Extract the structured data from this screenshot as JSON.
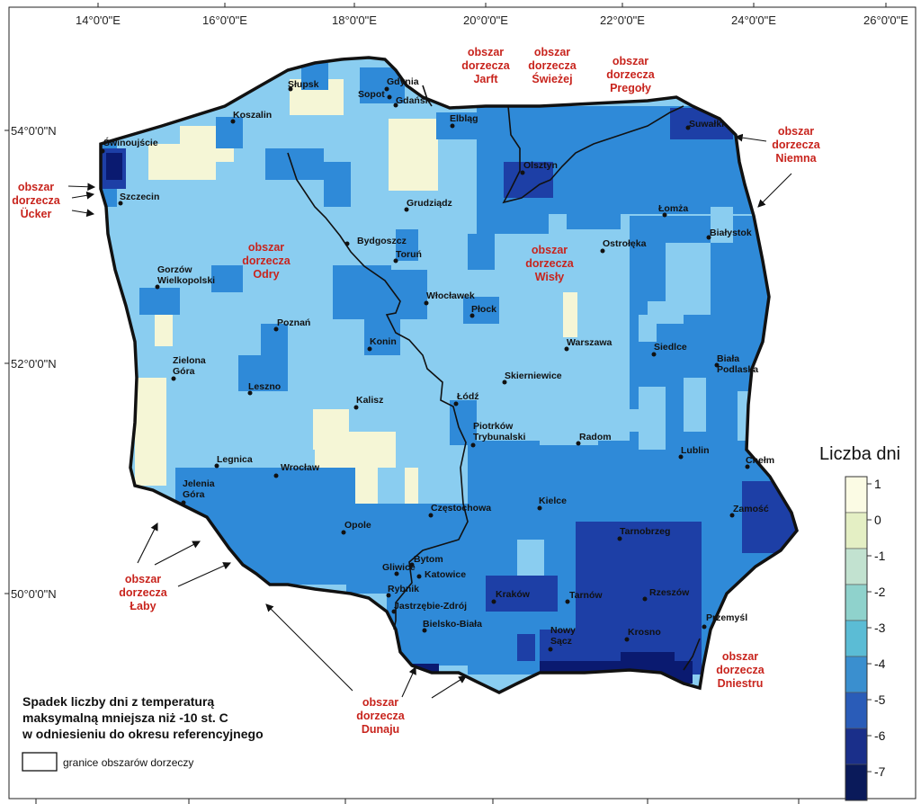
{
  "map": {
    "top_longitudes": [
      "14°0'0\"E",
      "16°0'0\"E",
      "18°0'0\"E",
      "20°0'0\"E",
      "22°0'0\"E",
      "24°0'0\"E",
      "26°0'0\"E"
    ],
    "left_latitudes": [
      "54°0'0\"N",
      "52°0'0\"N",
      "50°0'0\"N"
    ],
    "colors": {
      "water": "#7ecff1",
      "c1": "#f5f6d6",
      "c4": "#8acdf0",
      "c5": "#2f8ad8",
      "c6": "#1d3fa6",
      "c7": "#0a1a70",
      "label": "#c8241d"
    }
  },
  "cities": [
    {
      "name": "Świnoujście"
    },
    {
      "name": "Szczecin"
    },
    {
      "name": "Koszalin"
    },
    {
      "name": "Słupsk"
    },
    {
      "name": "Gdynia"
    },
    {
      "name": "Sopot"
    },
    {
      "name": "Gdańsk"
    },
    {
      "name": "Elbląg"
    },
    {
      "name": "Olsztyn"
    },
    {
      "name": "Suwałki"
    },
    {
      "name": "Grudziądz"
    },
    {
      "name": "Bydgoszcz"
    },
    {
      "name": "Toruń"
    },
    {
      "name": "Łomża"
    },
    {
      "name": "Ostrołęka"
    },
    {
      "name": "Białystok"
    },
    {
      "name": "Gorzów Wielkopolski"
    },
    {
      "name": "Włocławek"
    },
    {
      "name": "Płock"
    },
    {
      "name": "Poznań"
    },
    {
      "name": "Konin"
    },
    {
      "name": "Warszawa"
    },
    {
      "name": "Siedlce"
    },
    {
      "name": "Biała Podlaska"
    },
    {
      "name": "Zielona Góra"
    },
    {
      "name": "Leszno"
    },
    {
      "name": "Kalisz"
    },
    {
      "name": "Łódź"
    },
    {
      "name": "Skierniewice"
    },
    {
      "name": "Piotrków Trybunalski"
    },
    {
      "name": "Radom"
    },
    {
      "name": "Lublin"
    },
    {
      "name": "Chełm"
    },
    {
      "name": "Legnica"
    },
    {
      "name": "Wrocław"
    },
    {
      "name": "Jelenia Góra"
    },
    {
      "name": "Częstochowa"
    },
    {
      "name": "Kielce"
    },
    {
      "name": "Zamość"
    },
    {
      "name": "Opole"
    },
    {
      "name": "Tarnobrzeg"
    },
    {
      "name": "Gliwice"
    },
    {
      "name": "Bytom"
    },
    {
      "name": "Katowice"
    },
    {
      "name": "Rybnik"
    },
    {
      "name": "Rzeszów"
    },
    {
      "name": "Kraków"
    },
    {
      "name": "Tarnów"
    },
    {
      "name": "Jastrzębie-Zdrój"
    },
    {
      "name": "Przemyśl"
    },
    {
      "name": "Bielsko-Biała"
    },
    {
      "name": "Nowy Sącz"
    },
    {
      "name": "Krosno"
    }
  ],
  "basins": {
    "jarft": "obszar dorzecza Jarft",
    "swiezej": "obszar dorzecza Świeżej",
    "pregoly": "obszar dorzecza Pregoły",
    "niemna": "obszar dorzecza Niemna",
    "ucker": "obszar dorzecza Ücker",
    "odry": "obszar dorzecza Odry",
    "wisly": "obszar dorzecza Wisły",
    "laby": "obszar dorzecza Łaby",
    "dunaju": "obszar dorzecza Dunaju",
    "dniestru": "obszar dorzecza Dniestru"
  },
  "legend": {
    "title": "Liczba dni",
    "ticks": [
      "1",
      "0",
      "-1",
      "-2",
      "-3",
      "-4",
      "-5",
      "-6",
      "-7"
    ],
    "colors": [
      "#fbfbe4",
      "#e4efc4",
      "#c2e2d0",
      "#8fd2cc",
      "#5bbcd5",
      "#3a8fcf",
      "#2a5cb8",
      "#1a2f8a",
      "#0a1a5a"
    ]
  },
  "caption": {
    "line1": "Spadek liczby dni z temperaturą",
    "line2": "maksymalną mniejsza niż -10 st. C",
    "line3": "w odniesieniu do okresu referencyjnego",
    "boundary_label": "granice obszarów dorzeczy"
  }
}
